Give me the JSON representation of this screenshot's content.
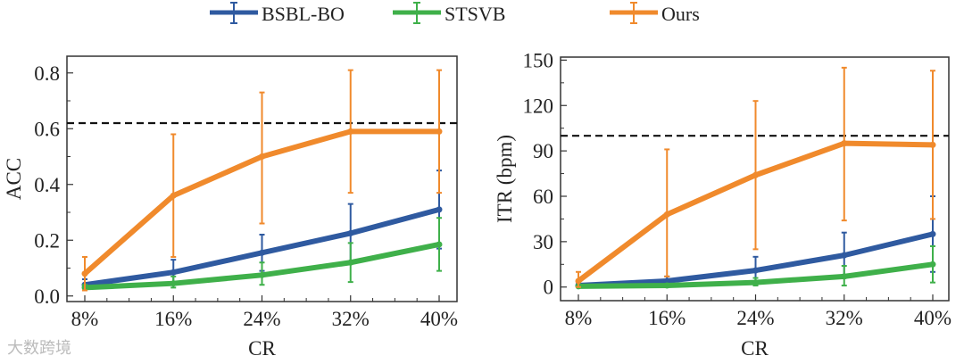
{
  "chart_data": [
    {
      "type": "line",
      "title": "",
      "xlabel": "CR",
      "ylabel": "ACC",
      "categories": [
        "8%",
        "16%",
        "24%",
        "32%",
        "40%"
      ],
      "ylim": [
        -0.02,
        0.86
      ],
      "yticks": [
        "0.0",
        "0.2",
        "0.4",
        "0.6",
        "0.8"
      ],
      "ytick_values": [
        0,
        0.2,
        0.4,
        0.6,
        0.8
      ],
      "reference_line": 0.62,
      "series": [
        {
          "name": "BSBL-BO",
          "color": "#2f5aa0",
          "values": [
            0.04,
            0.085,
            0.155,
            0.225,
            0.31
          ],
          "err_low": [
            0.03,
            0.04,
            0.09,
            0.12,
            0.17
          ],
          "err_high": [
            0.06,
            0.13,
            0.22,
            0.33,
            0.45
          ]
        },
        {
          "name": "STSVB",
          "color": "#3fb04a",
          "values": [
            0.03,
            0.045,
            0.075,
            0.12,
            0.185
          ],
          "err_low": [
            0.02,
            0.03,
            0.04,
            0.05,
            0.09
          ],
          "err_high": [
            0.04,
            0.07,
            0.12,
            0.19,
            0.28
          ]
        },
        {
          "name": "Ours",
          "color": "#f08a2c",
          "values": [
            0.08,
            0.36,
            0.5,
            0.59,
            0.59
          ],
          "err_low": [
            0.02,
            0.14,
            0.26,
            0.37,
            0.37
          ],
          "err_high": [
            0.14,
            0.58,
            0.73,
            0.81,
            0.81
          ]
        }
      ]
    },
    {
      "type": "line",
      "title": "",
      "xlabel": "CR",
      "ylabel": "ITR (bpm)",
      "categories": [
        "8%",
        "16%",
        "24%",
        "32%",
        "40%"
      ],
      "ylim": [
        -9,
        152
      ],
      "yticks": [
        "0",
        "30",
        "60",
        "90",
        "120",
        "150"
      ],
      "ytick_values": [
        0,
        30,
        60,
        90,
        120,
        150
      ],
      "reference_line": 100,
      "series": [
        {
          "name": "BSBL-BO",
          "color": "#2f5aa0",
          "values": [
            1,
            4,
            11,
            21,
            35
          ],
          "err_low": [
            0,
            1,
            2,
            6,
            10
          ],
          "err_high": [
            2,
            7,
            20,
            36,
            60
          ]
        },
        {
          "name": "STSVB",
          "color": "#3fb04a",
          "values": [
            0.5,
            1,
            3,
            7,
            15
          ],
          "err_low": [
            0,
            0,
            1,
            1,
            3
          ],
          "err_high": [
            1,
            2,
            6,
            14,
            27
          ]
        },
        {
          "name": "Ours",
          "color": "#f08a2c",
          "values": [
            4,
            48,
            74,
            95,
            94
          ],
          "err_low": [
            0,
            7,
            25,
            44,
            45
          ],
          "err_high": [
            10,
            91,
            123,
            145,
            143
          ]
        }
      ]
    }
  ],
  "legend": [
    "BSBL-BO",
    "STSVB",
    "Ours"
  ],
  "watermark": "大数跨境"
}
